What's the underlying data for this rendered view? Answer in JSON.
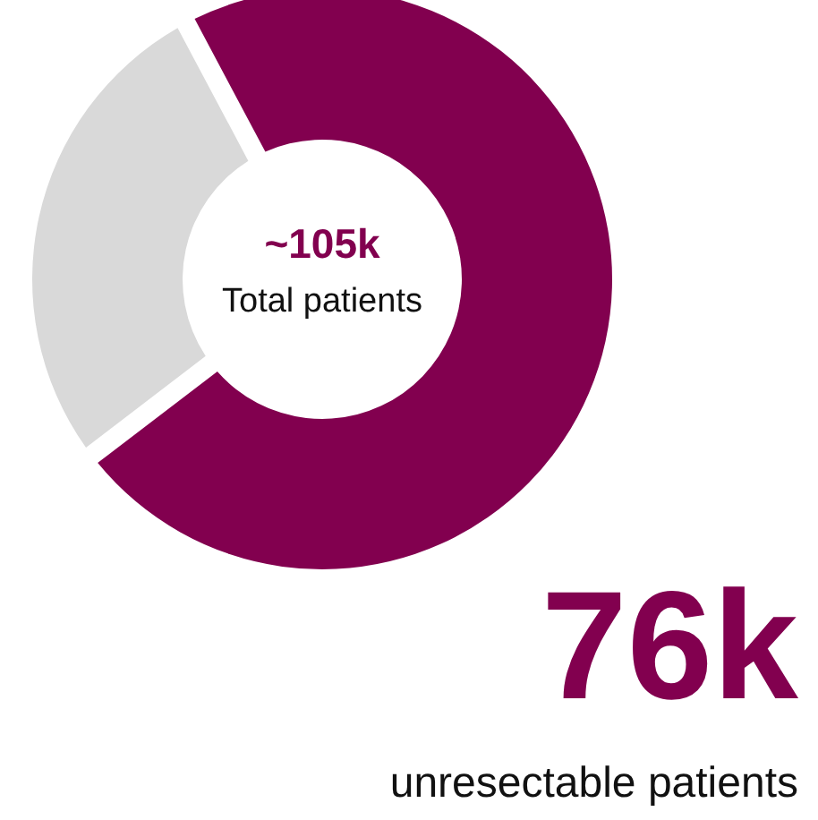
{
  "chart_data": {
    "type": "donut",
    "categories": [
      null,
      null
    ],
    "values": [
      72.4,
      27.6
    ],
    "colors": [
      "#82004f",
      "#d9d9d9"
    ],
    "annotations": [
      "~105k",
      "Total patients",
      "76k",
      "unresectable patients"
    ]
  }
}
